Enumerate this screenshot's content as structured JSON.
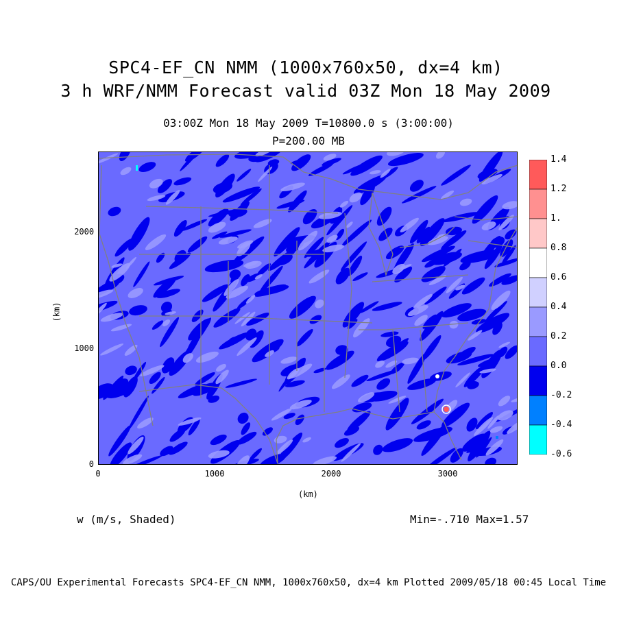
{
  "title": {
    "line1": "SPC4-EF_CN NMM (1000x760x50, dx=4 km)",
    "line2": "3 h WRF/NMM Forecast valid 03Z Mon 18 May 2009",
    "time_info": "03:00Z Mon 18 May 2009     T=10800.0 s (3:00:00)",
    "level": "P=200.00 MB"
  },
  "axes": {
    "x_unit": "(km)",
    "y_unit": "(km)",
    "x_ticks": [
      "0",
      "1000",
      "2000",
      "3000"
    ],
    "y_ticks": [
      "0",
      "1000",
      "2000"
    ],
    "x_range": [
      0,
      3600
    ],
    "y_range": [
      0,
      2700
    ]
  },
  "variable_label": "w (m/s, Shaded)",
  "min_max": "Min=-.710 Max=1.57",
  "footer": "CAPS/OU Experimental Forecasts  SPC4-EF_CN NMM, 1000x760x50, dx=4 km  Plotted 2009/05/18 00:45 Local Time",
  "colorbar": {
    "levels": [
      "1.4",
      "1.2",
      "1.",
      "0.8",
      "0.6",
      "0.4",
      "0.2",
      "0.0",
      "-0.2",
      "-0.4",
      "-0.6"
    ],
    "colors": [
      "#ff5a5a",
      "#ff9090",
      "#ffc8c8",
      "#ffffff",
      "#d0d0ff",
      "#9a9aff",
      "#6a6aff",
      "#0000ee",
      "#0080ff",
      "#00ffff"
    ]
  },
  "colors": {
    "background_field": "#6a6aff",
    "updraft_light": "#9a9aff",
    "downdraft": "#0000ee",
    "boundaries": "#808080"
  }
}
